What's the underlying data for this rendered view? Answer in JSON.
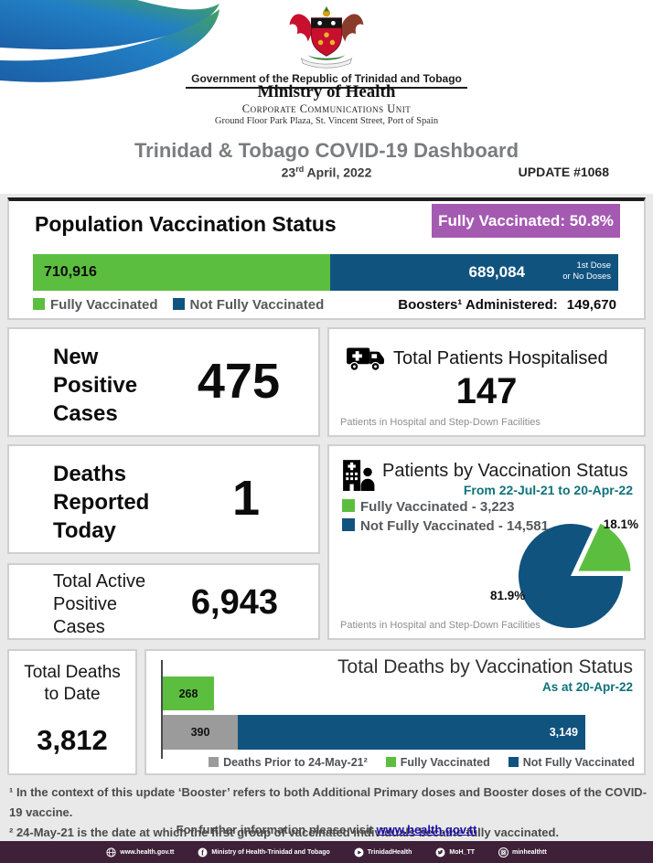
{
  "colors": {
    "green": "#5CBE3F",
    "blue": "#11537F",
    "purple": "#A55AB1",
    "teal": "#0E727B",
    "footer": "#3E2138",
    "page_bg": "#E9E9E9",
    "link": "#1A0DAB",
    "gray_bar": "#9B9B9B"
  },
  "header": {
    "gov_line": "Government of the Republic of Trinidad and Tobago",
    "ministry": "Ministry of Health",
    "unit": "Corporate Communications Unit",
    "address": "Ground Floor Park Plaza, St. Vincent Street, Port of Spain",
    "title": "Trinidad & Tobago COVID-19 Dashboard",
    "date_day": "23",
    "date_sup": "rd",
    "date_rest": " April, 2022",
    "update": "UPDATE #1068"
  },
  "population": {
    "title": "Population Vaccination Status",
    "badge": "Fully Vaccinated: 50.8%",
    "fully_value": "710,916",
    "notfully_value": "689,084",
    "notfully_note": [
      "1st Dose",
      "or No Doses"
    ],
    "legend": [
      "Fully Vaccinated",
      "Not Fully Vaccinated"
    ],
    "boosters_label": "Boosters¹ Administered:",
    "boosters_value": "149,670"
  },
  "cards": {
    "new_cases": {
      "lines": [
        "New",
        "Positive",
        "Cases"
      ],
      "value": "475"
    },
    "hospitalised": {
      "title": "Total Patients Hospitalised",
      "value": "147",
      "note": "Patients in Hospital and Step-Down Facilities"
    },
    "deaths_today": {
      "lines": [
        "Deaths",
        "Reported",
        "Today"
      ],
      "value": "1"
    },
    "active_cases": {
      "lines": [
        "Total Active",
        "Positive",
        "Cases"
      ],
      "value": "6,943"
    },
    "total_deaths": {
      "lines": [
        "Total Deaths",
        "to Date"
      ],
      "value": "3,812"
    }
  },
  "patients_status": {
    "title": "Patients by Vaccination Status",
    "subtitle": "From 22-Jul-21 to 20-Apr-22",
    "legend": [
      {
        "label": "Fully Vaccinated - 3,223",
        "color": "green"
      },
      {
        "label": "Not Fully Vaccinated - 14,581",
        "color": "blue"
      }
    ],
    "pie_label_green": "18.1%",
    "pie_label_blue": "81.9%",
    "note": "Patients in Hospital and Step-Down Facilities"
  },
  "deaths_chart": {
    "title": "Total Deaths by Vaccination Status",
    "subtitle": "As at 20-Apr-22",
    "bar_fully_label": "268",
    "bar_prior_label": "390",
    "bar_notfully_label": "3,149",
    "legend": [
      "Deaths Prior to 24-May-21²",
      "Fully Vaccinated",
      "Not Fully Vaccinated"
    ]
  },
  "footnotes": {
    "line1": "¹ In the context of this update ‘Booster’ refers to both Additional Primary doses and Booster doses of the COVID-19 vaccine.",
    "line2": "² 24-May-21 is the date at which the first group of vaccinated individuals became fully vaccinated.",
    "info": "For further information please visit",
    "link": "www.health.gov.tt"
  },
  "footer": {
    "items": [
      {
        "icon": "globe-icon",
        "label": "www.health.gov.tt"
      },
      {
        "icon": "facebook-icon",
        "label": "Ministry of Health-Trinidad and Tobago"
      },
      {
        "icon": "youtube-icon",
        "label": "TrinidadHealth"
      },
      {
        "icon": "twitter-icon",
        "label": "MoH_TT"
      },
      {
        "icon": "instagram-icon",
        "label": "minhealthtt"
      }
    ]
  },
  "chart_data": [
    {
      "type": "bar",
      "title": "Population Vaccination Status",
      "orientation": "stacked-horizontal",
      "categories": [
        "Fully Vaccinated",
        "Not Fully Vaccinated (1st Dose or No Doses)"
      ],
      "values": [
        710916,
        689084
      ],
      "fully_vaccinated_pct": 50.8,
      "boosters_administered": 149670,
      "legend_position": "below-left"
    },
    {
      "type": "pie",
      "title": "Patients by Vaccination Status",
      "subtitle": "From 22-Jul-21 to 20-Apr-22",
      "categories": [
        "Fully Vaccinated",
        "Not Fully Vaccinated"
      ],
      "values": [
        3223,
        14581
      ],
      "percentages": [
        18.1,
        81.9
      ],
      "exploded_slice": "Fully Vaccinated",
      "note": "Patients in Hospital and Step-Down Facilities",
      "legend_position": "upper-left"
    },
    {
      "type": "bar",
      "title": "Total Deaths by Vaccination Status",
      "subtitle": "As at 20-Apr-22",
      "orientation": "horizontal",
      "categories": [
        "Fully Vaccinated",
        "Deaths Prior to 24-May-21",
        "Not Fully Vaccinated"
      ],
      "values": [
        268,
        390,
        3149
      ],
      "bars": [
        {
          "segments": [
            {
              "label": "Fully Vaccinated",
              "value": 268
            }
          ]
        },
        {
          "segments": [
            {
              "label": "Deaths Prior to 24-May-21",
              "value": 390
            },
            {
              "label": "Not Fully Vaccinated",
              "value": 3149
            }
          ]
        }
      ],
      "legend_position": "below"
    }
  ]
}
